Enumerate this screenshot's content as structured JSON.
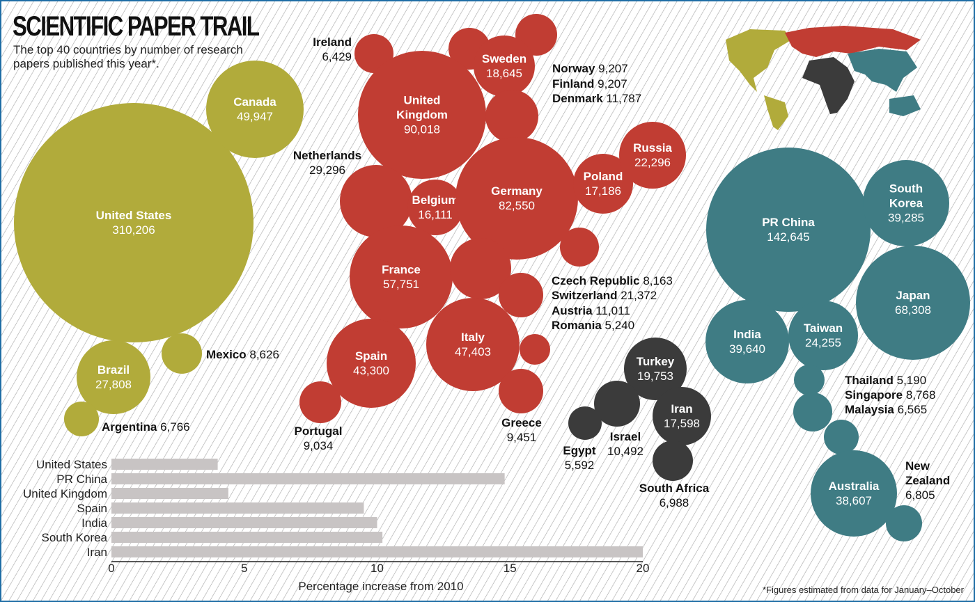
{
  "header": {
    "title": "SCIENTIFIC PAPER TRAIL",
    "subtitle": "The top 40 countries by number of research papers published this year*."
  },
  "footnote": "*Figures estimated from data for January–October",
  "colors": {
    "Americas": "#b1ab3b",
    "Europe": "#c13d33",
    "Middle East & Africa": "#3b3b3b",
    "Asia-Pacific": "#3f7c84",
    "bar": "#c8c4c4",
    "border": "#1f6ea6"
  },
  "chart_data": [
    {
      "type": "bubble",
      "title": "SCIENTIFIC PAPER TRAIL",
      "subtitle": "The top 40 countries by number of research papers published this year*.",
      "bubbles": [
        {
          "country": "United States",
          "papers": "310,206",
          "region": "Americas"
        },
        {
          "country": "Canada",
          "papers": "49,947",
          "region": "Americas"
        },
        {
          "country": "Brazil",
          "papers": "27,808",
          "region": "Americas"
        },
        {
          "country": "Mexico",
          "papers": "8,626",
          "region": "Americas"
        },
        {
          "country": "Argentina",
          "papers": "6,766",
          "region": "Americas"
        },
        {
          "country": "Ireland",
          "papers": "6,429",
          "region": "Europe"
        },
        {
          "country": "Norway",
          "papers": "9,207",
          "region": "Europe"
        },
        {
          "country": "Finland",
          "papers": "9,207",
          "region": "Europe"
        },
        {
          "country": "Sweden",
          "papers": "18,645",
          "region": "Europe"
        },
        {
          "country": "Denmark",
          "papers": "11,787",
          "region": "Europe"
        },
        {
          "country": "United Kingdom",
          "papers": "90,018",
          "region": "Europe"
        },
        {
          "country": "Netherlands",
          "papers": "29,296",
          "region": "Europe"
        },
        {
          "country": "Belgium",
          "papers": "16,111",
          "region": "Europe"
        },
        {
          "country": "Germany",
          "papers": "82,550",
          "region": "Europe"
        },
        {
          "country": "Poland",
          "papers": "17,186",
          "region": "Europe"
        },
        {
          "country": "Russia",
          "papers": "22,296",
          "region": "Europe"
        },
        {
          "country": "Czech Republic",
          "papers": "8,163",
          "region": "Europe"
        },
        {
          "country": "France",
          "papers": "57,751",
          "region": "Europe"
        },
        {
          "country": "Switzerland",
          "papers": "21,372",
          "region": "Europe"
        },
        {
          "country": "Austria",
          "papers": "11,011",
          "region": "Europe"
        },
        {
          "country": "Italy",
          "papers": "47,403",
          "region": "Europe"
        },
        {
          "country": "Romania",
          "papers": "5,240",
          "region": "Europe"
        },
        {
          "country": "Spain",
          "papers": "43,300",
          "region": "Europe"
        },
        {
          "country": "Portugal",
          "papers": "9,034",
          "region": "Europe"
        },
        {
          "country": "Greece",
          "papers": "9,451",
          "region": "Europe"
        },
        {
          "country": "Turkey",
          "papers": "19,753",
          "region": "Middle East & Africa"
        },
        {
          "country": "Iran",
          "papers": "17,598",
          "region": "Middle East & Africa"
        },
        {
          "country": "Israel",
          "papers": "10,492",
          "region": "Middle East & Africa"
        },
        {
          "country": "Egypt",
          "papers": "5,592",
          "region": "Middle East & Africa"
        },
        {
          "country": "South Africa",
          "papers": "6,988",
          "region": "Middle East & Africa"
        },
        {
          "country": "PR China",
          "papers": "142,645",
          "region": "Asia-Pacific"
        },
        {
          "country": "South Korea",
          "papers": "39,285",
          "region": "Asia-Pacific"
        },
        {
          "country": "Japan",
          "papers": "68,308",
          "region": "Asia-Pacific"
        },
        {
          "country": "India",
          "papers": "39,640",
          "region": "Asia-Pacific"
        },
        {
          "country": "Taiwan",
          "papers": "24,255",
          "region": "Asia-Pacific"
        },
        {
          "country": "Thailand",
          "papers": "5,190",
          "region": "Asia-Pacific"
        },
        {
          "country": "Singapore",
          "papers": "8,768",
          "region": "Asia-Pacific"
        },
        {
          "country": "Malaysia",
          "papers": "6,565",
          "region": "Asia-Pacific"
        },
        {
          "country": "Australia",
          "papers": "38,607",
          "region": "Asia-Pacific"
        },
        {
          "country": "New Zealand",
          "papers": "6,805",
          "region": "Asia-Pacific"
        }
      ]
    },
    {
      "type": "bar",
      "orientation": "horizontal",
      "xlabel": "Percentage increase from 2010",
      "xlim": [
        0,
        20
      ],
      "xticks": [
        0,
        5,
        10,
        15,
        20
      ],
      "categories": [
        "United States",
        "PR China",
        "United Kingdom",
        "Spain",
        "India",
        "South Korea",
        "Iran"
      ],
      "values": [
        4.0,
        14.8,
        4.4,
        9.5,
        10.0,
        10.2,
        20.0
      ]
    }
  ]
}
